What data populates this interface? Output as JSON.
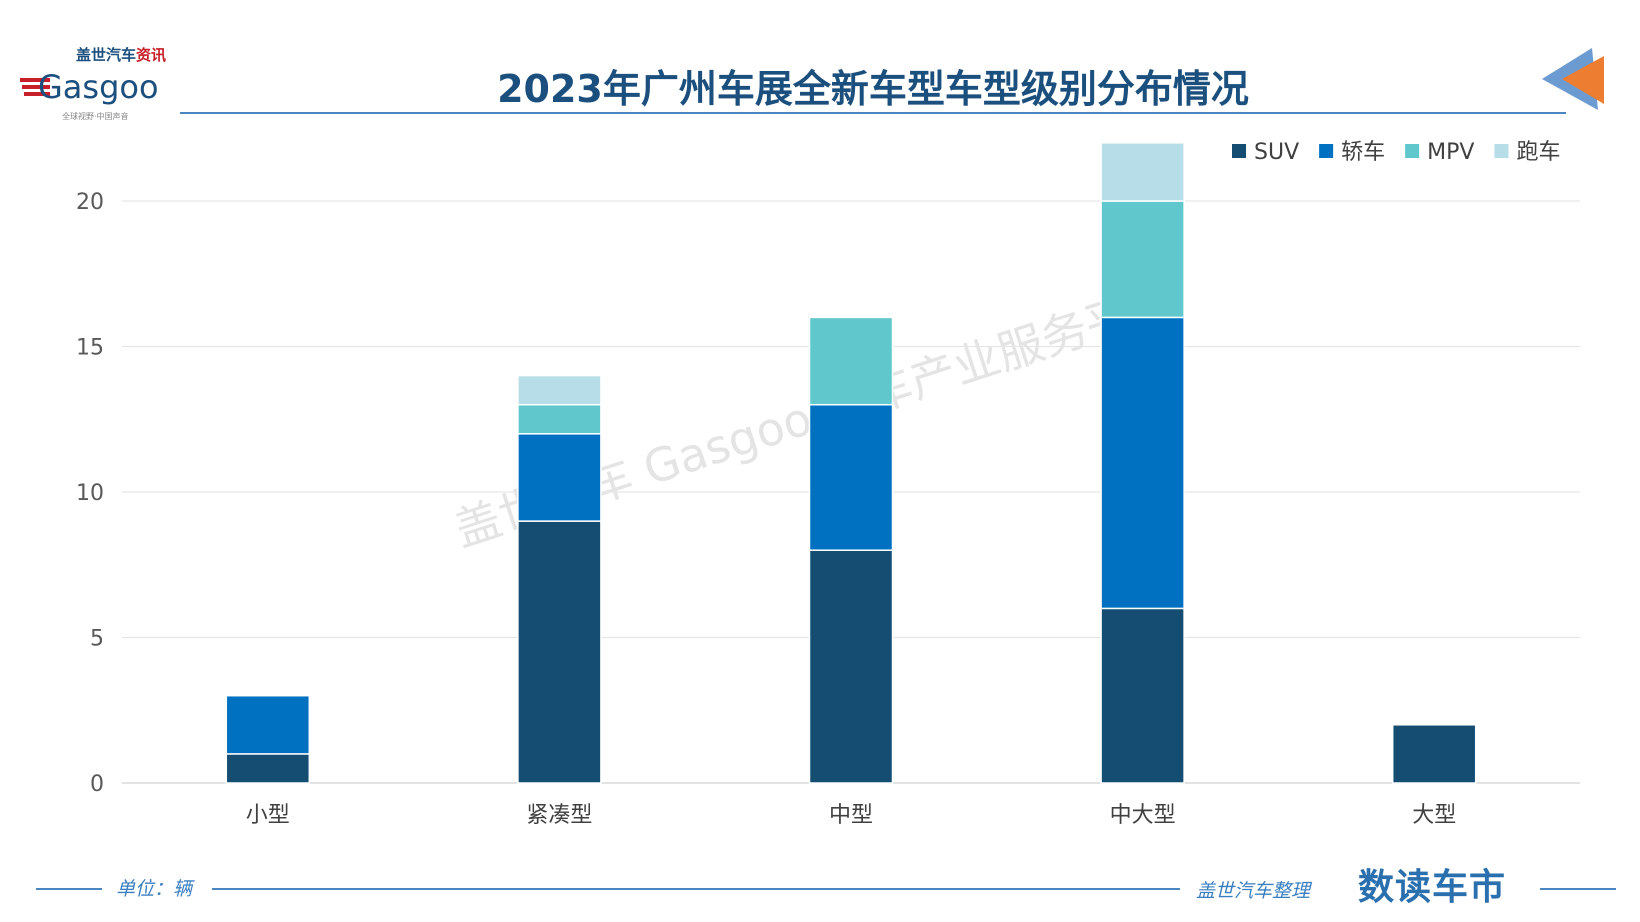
{
  "header": {
    "title": "2023年广州车展全新车型车型级别分布情况",
    "logo_text": "盖世汽车资讯 Gasgoo 全球视野·中国声音"
  },
  "footer": {
    "unit": "单位：辆",
    "source": "盖世汽车整理",
    "brand": "数读车市"
  },
  "watermark": "盖世汽车 Gasgoo 汽车产业服务平台",
  "chart_data": {
    "type": "bar",
    "stacked": true,
    "title": "2023年广州车展全新车型车型级别分布情况",
    "categories": [
      "小型",
      "紧凑型",
      "中型",
      "中大型",
      "大型"
    ],
    "series": [
      {
        "name": "SUV",
        "color": "#154c72",
        "values": [
          1,
          9,
          8,
          6,
          2
        ]
      },
      {
        "name": "轿车",
        "color": "#0070c0",
        "values": [
          2,
          3,
          5,
          10,
          0
        ]
      },
      {
        "name": "MPV",
        "color": "#60c8cc",
        "values": [
          0,
          1,
          3,
          4,
          0
        ]
      },
      {
        "name": "跑车",
        "color": "#b6dde8",
        "values": [
          0,
          1,
          0,
          2,
          0
        ]
      }
    ],
    "ylim": [
      0,
      22
    ],
    "yticks": [
      0,
      5,
      10,
      15,
      20
    ],
    "grid": true,
    "legend": "top-right",
    "ylabel": "单位：辆"
  }
}
